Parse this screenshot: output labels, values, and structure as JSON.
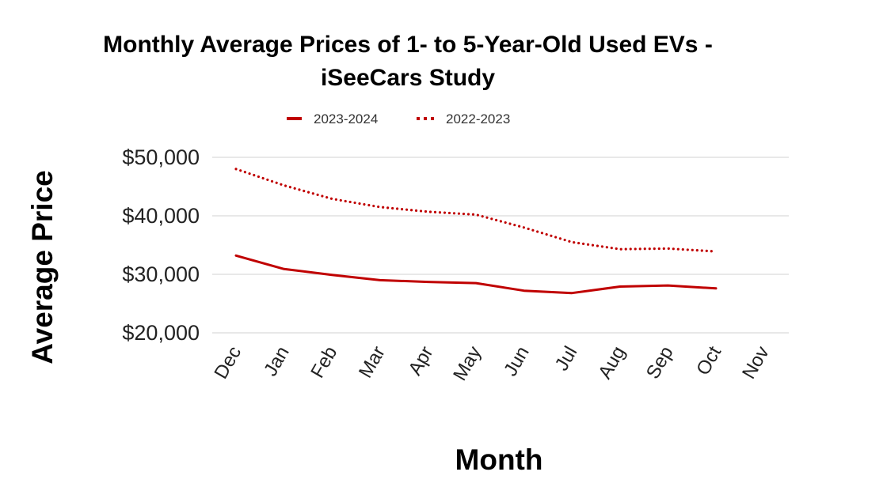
{
  "chart_data": {
    "type": "line",
    "title": "Monthly Average Prices of 1- to 5-Year-Old Used EVs - iSeeCars Study",
    "title_lines": [
      "Monthly Average Prices of 1- to 5-Year-Old Used EVs -",
      "iSeeCars Study"
    ],
    "xlabel": "Month",
    "ylabel": "Average Price",
    "categories": [
      "Dec",
      "Jan",
      "Feb",
      "Mar",
      "Apr",
      "May",
      "Jun",
      "Jul",
      "Aug",
      "Sep",
      "Oct",
      "Nov"
    ],
    "ylim": [
      20000,
      50000
    ],
    "yticks": [
      20000,
      30000,
      40000,
      50000
    ],
    "ytick_labels": [
      "$20,000",
      "$30,000",
      "$40,000",
      "$50,000"
    ],
    "grid": true,
    "legend_position": "top-center",
    "series": [
      {
        "name": "2023-2024",
        "style": "solid",
        "color": "#c00000",
        "values": [
          33200,
          30900,
          29900,
          29000,
          28700,
          28500,
          27200,
          26800,
          27900,
          28100,
          27600,
          null
        ]
      },
      {
        "name": "2022-2023",
        "style": "dotted",
        "color": "#c00000",
        "values": [
          48000,
          45200,
          42900,
          41500,
          40700,
          40200,
          38000,
          35500,
          34300,
          34400,
          33900,
          null
        ]
      }
    ]
  }
}
